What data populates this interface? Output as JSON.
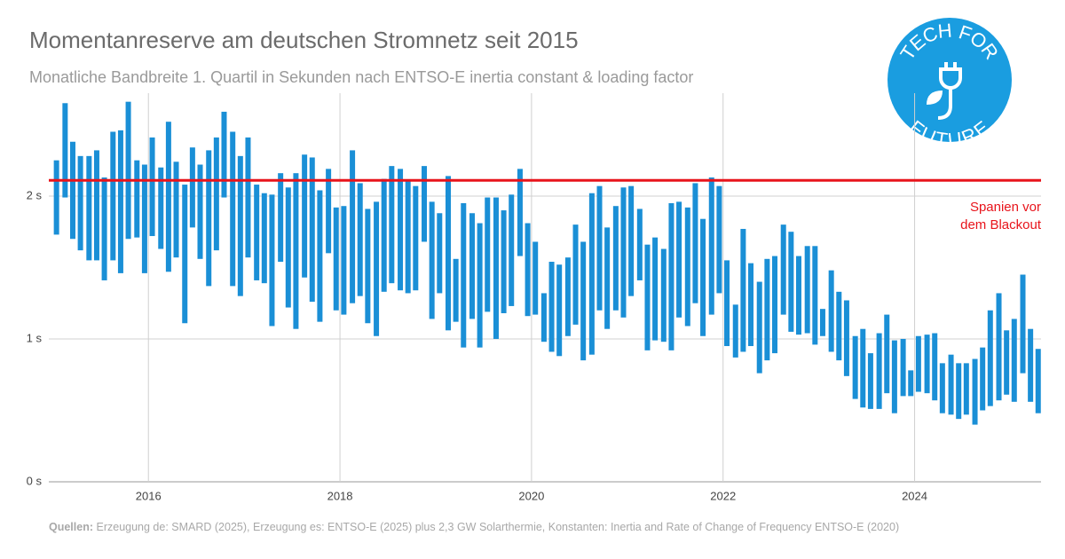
{
  "chart_data": {
    "type": "rangebar",
    "title": "Momentanreserve am deutschen Stromnetz seit 2015",
    "subtitle": "Monatliche Bandbreite 1. Quartil in Sekunden nach ENTSO-E inertia constant & loading factor",
    "color": "#1a8fd6",
    "x": [
      2015.04,
      2015.13,
      2015.21,
      2015.29,
      2015.38,
      2015.46,
      2015.54,
      2015.63,
      2015.71,
      2015.79,
      2015.88,
      2015.96,
      2016.04,
      2016.13,
      2016.21,
      2016.29,
      2016.38,
      2016.46,
      2016.54,
      2016.63,
      2016.71,
      2016.79,
      2016.88,
      2016.96,
      2017.04,
      2017.13,
      2017.21,
      2017.29,
      2017.38,
      2017.46,
      2017.54,
      2017.63,
      2017.71,
      2017.79,
      2017.88,
      2017.96,
      2018.04,
      2018.13,
      2018.21,
      2018.29,
      2018.38,
      2018.46,
      2018.54,
      2018.63,
      2018.71,
      2018.79,
      2018.88,
      2018.96,
      2019.04,
      2019.13,
      2019.21,
      2019.29,
      2019.38,
      2019.46,
      2019.54,
      2019.63,
      2019.71,
      2019.79,
      2019.88,
      2019.96,
      2020.04,
      2020.13,
      2020.21,
      2020.29,
      2020.38,
      2020.46,
      2020.54,
      2020.63,
      2020.71,
      2020.79,
      2020.88,
      2020.96,
      2021.04,
      2021.13,
      2021.21,
      2021.29,
      2021.38,
      2021.46,
      2021.54,
      2021.63,
      2021.71,
      2021.79,
      2021.88,
      2021.96,
      2022.04,
      2022.13,
      2022.21,
      2022.29,
      2022.38,
      2022.46,
      2022.54,
      2022.63,
      2022.71,
      2022.79,
      2022.88,
      2022.96,
      2023.04,
      2023.13,
      2023.21,
      2023.29,
      2023.38,
      2023.46,
      2023.54,
      2023.63,
      2023.71,
      2023.79,
      2023.88,
      2023.96,
      2024.04,
      2024.13,
      2024.21,
      2024.29,
      2024.38,
      2024.46,
      2024.54,
      2024.63,
      2024.71,
      2024.79,
      2024.88,
      2024.96,
      2025.04,
      2025.13,
      2025.21,
      2025.29
    ],
    "high": [
      2.25,
      2.65,
      2.38,
      2.28,
      2.28,
      2.32,
      2.13,
      2.45,
      2.46,
      2.66,
      2.25,
      2.22,
      2.41,
      2.2,
      2.52,
      2.24,
      2.08,
      2.34,
      2.22,
      2.32,
      2.41,
      2.59,
      2.45,
      2.28,
      2.41,
      2.08,
      2.02,
      2.01,
      2.16,
      2.06,
      2.16,
      2.29,
      2.27,
      2.04,
      2.19,
      1.92,
      1.93,
      2.32,
      2.09,
      1.91,
      1.96,
      2.12,
      2.21,
      2.19,
      2.11,
      2.07,
      2.21,
      1.96,
      1.88,
      2.14,
      1.56,
      1.95,
      1.88,
      1.81,
      1.99,
      1.99,
      1.9,
      2.01,
      2.19,
      1.81,
      1.68,
      1.32,
      1.54,
      1.52,
      1.57,
      1.8,
      1.68,
      2.02,
      2.07,
      1.78,
      1.93,
      2.06,
      2.07,
      1.91,
      1.66,
      1.71,
      1.63,
      1.95,
      1.96,
      1.92,
      2.09,
      1.84,
      2.13,
      2.07,
      1.55,
      1.24,
      1.77,
      1.53,
      1.4,
      1.56,
      1.58,
      1.8,
      1.75,
      1.58,
      1.65,
      1.65,
      1.21,
      1.48,
      1.33,
      1.27,
      1.02,
      1.07,
      0.9,
      1.04,
      1.17,
      0.99,
      1.0,
      0.78,
      1.02,
      1.03,
      1.04,
      0.83,
      0.89,
      0.83,
      0.83,
      0.86,
      0.94,
      1.2,
      1.32,
      1.06,
      1.14,
      1.45,
      1.07,
      0.93
    ],
    "low": [
      1.73,
      1.99,
      1.7,
      1.62,
      1.55,
      1.55,
      1.41,
      1.55,
      1.46,
      1.7,
      1.71,
      1.46,
      1.72,
      1.63,
      1.47,
      1.57,
      1.11,
      1.78,
      1.56,
      1.37,
      1.62,
      1.99,
      1.37,
      1.3,
      1.57,
      1.41,
      1.39,
      1.09,
      1.54,
      1.22,
      1.07,
      1.43,
      1.26,
      1.12,
      1.6,
      1.2,
      1.17,
      1.25,
      1.3,
      1.11,
      1.02,
      1.33,
      1.39,
      1.34,
      1.32,
      1.34,
      1.68,
      1.14,
      1.32,
      1.06,
      1.12,
      0.94,
      1.14,
      0.94,
      1.19,
      1.0,
      1.18,
      1.23,
      1.58,
      1.16,
      1.17,
      0.98,
      0.91,
      0.88,
      1.02,
      1.1,
      0.85,
      0.89,
      1.2,
      1.07,
      1.2,
      1.15,
      1.3,
      1.41,
      0.92,
      0.99,
      0.98,
      0.92,
      1.15,
      1.09,
      1.25,
      1.02,
      1.17,
      1.32,
      0.95,
      0.87,
      0.91,
      0.95,
      0.76,
      0.85,
      0.9,
      1.17,
      1.05,
      1.03,
      1.04,
      0.96,
      1.02,
      0.91,
      0.85,
      0.74,
      0.58,
      0.52,
      0.51,
      0.51,
      0.62,
      0.48,
      0.6,
      0.6,
      0.63,
      0.62,
      0.57,
      0.48,
      0.47,
      0.44,
      0.47,
      0.4,
      0.5,
      0.53,
      0.57,
      0.61,
      0.56,
      0.76,
      0.56,
      0.48
    ],
    "xlim": [
      2014.96,
      2025.32
    ],
    "xticks": [
      2016,
      2018,
      2020,
      2022,
      2024
    ],
    "ylim": [
      0,
      2.72
    ],
    "yticks": [
      {
        "value": 0,
        "label": "0 s"
      },
      {
        "value": 1,
        "label": "1 s"
      },
      {
        "value": 2,
        "label": "2 s"
      }
    ],
    "grid": true,
    "reference_line": {
      "value": 2.11,
      "color": "#e8141b",
      "label": [
        "Spanien vor",
        "dem Blackout"
      ]
    },
    "source_label": "Quellen:",
    "source": "Erzeugung de: SMARD (2025), Erzeugung es: ENTSO-E (2025) plus 2,3 GW Solarthermie, Konstanten: Inertia and Rate of Change of Frequency ENTSO-E (2020)"
  },
  "logo": {
    "top": "TECH FOR",
    "bottom": "FUTURE"
  }
}
